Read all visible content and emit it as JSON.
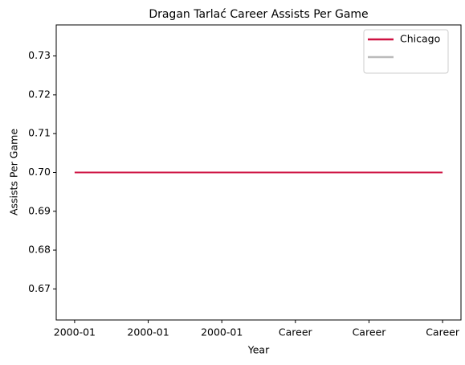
{
  "chart_data": {
    "type": "line",
    "title": "Dragan Tarlać Career Assists Per Game",
    "xlabel": "Year",
    "ylabel": "Assists Per Game",
    "categories": [
      "2000-01",
      "2000-01",
      "2000-01",
      "Career",
      "Career",
      "Career"
    ],
    "series": [
      {
        "name": "Chicago",
        "color": "#ce1141",
        "values": [
          0.7,
          0.7,
          0.7,
          0.7,
          0.7,
          0.7
        ]
      },
      {
        "color": "#bbbbbb",
        "values": [
          null,
          null,
          null,
          null,
          null,
          null
        ]
      }
    ],
    "ylim": [
      0.662,
      0.738
    ],
    "yticks": [
      0.67,
      0.68,
      0.69,
      {
        "value": 0.7,
        "label": "0.70"
      },
      0.71,
      0.72,
      0.73
    ],
    "grid": false,
    "legend": "upper right"
  }
}
